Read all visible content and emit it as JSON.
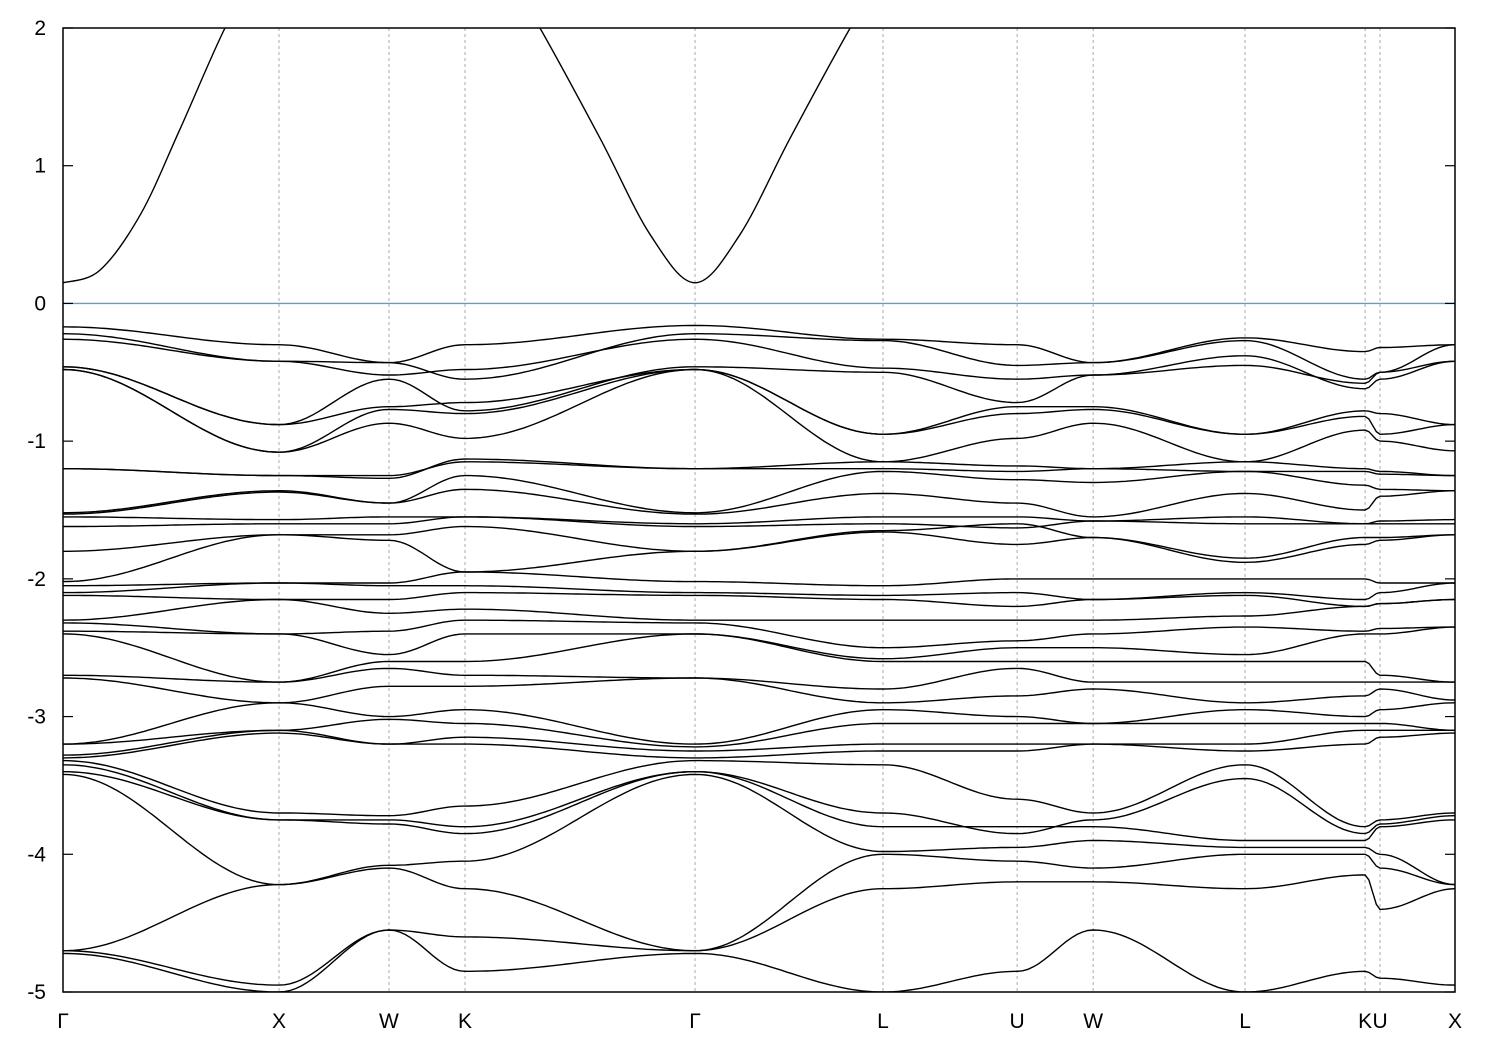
{
  "chart_data": {
    "type": "line",
    "title": "",
    "xlabel": "",
    "ylabel": "",
    "ylim": [
      -5,
      2
    ],
    "yticks": [
      "-5",
      "-4",
      "-3",
      "-2",
      "-1",
      "0",
      "1",
      "2"
    ],
    "grid": "vertical dashed lines at high-symmetry points",
    "fermi_level": 0,
    "colors": {
      "bands": "#000000",
      "fermi": "#4aa8d8",
      "grid": "#aaaaaa"
    },
    "kpoints": [
      {
        "label": "Γ",
        "k": 0
      },
      {
        "label": "X",
        "k": 1.0
      },
      {
        "label": "W",
        "k": 1.509
      },
      {
        "label": "K",
        "k": 1.861
      },
      {
        "label": "Γ",
        "k": 2.926
      },
      {
        "label": "L",
        "k": 3.796
      },
      {
        "label": "U",
        "k": 4.417
      },
      {
        "label": "W",
        "k": 4.769
      },
      {
        "label": "L",
        "k": 5.472
      },
      {
        "label": "K",
        "k": 6.028
      },
      {
        "label": "U",
        "k": 6.097
      },
      {
        "label": "X",
        "k": 6.444
      }
    ],
    "conduction_band": [
      [
        0,
        0.15
      ],
      [
        0.17,
        0.24
      ],
      [
        0.36,
        0.65
      ],
      [
        0.54,
        1.26
      ],
      [
        0.75,
        2.0
      ],
      [
        0.9,
        2.4
      ],
      [
        2.05,
        2.4
      ],
      [
        2.208,
        2.0
      ],
      [
        2.486,
        1.2
      ],
      [
        2.718,
        0.5
      ],
      [
        2.926,
        0.15
      ],
      [
        3.134,
        0.5
      ],
      [
        3.366,
        1.2
      ],
      [
        3.644,
        2.0
      ],
      [
        3.8,
        2.4
      ]
    ],
    "valence_bands": [
      [
        -0.17,
        -0.3,
        -0.43,
        -0.3,
        -0.16,
        -0.26,
        -0.3,
        -0.43,
        -0.25,
        -0.35,
        -0.32,
        -0.3
      ],
      [
        -0.22,
        -0.42,
        -0.43,
        -0.55,
        -0.22,
        -0.27,
        -0.45,
        -0.43,
        -0.27,
        -0.55,
        -0.5,
        -0.3
      ],
      [
        -0.26,
        -0.42,
        -0.52,
        -0.48,
        -0.26,
        -0.47,
        -0.55,
        -0.52,
        -0.38,
        -0.62,
        -0.55,
        -0.42
      ],
      [
        -0.46,
        -0.88,
        -0.55,
        -0.78,
        -0.46,
        -0.5,
        -0.72,
        -0.52,
        -0.45,
        -0.58,
        -0.5,
        -0.42
      ],
      [
        -0.46,
        -0.88,
        -0.75,
        -0.72,
        -0.48,
        -0.95,
        -0.75,
        -0.75,
        -0.95,
        -0.78,
        -0.8,
        -0.88
      ],
      [
        -0.48,
        -1.08,
        -0.77,
        -0.8,
        -0.48,
        -0.95,
        -0.8,
        -0.77,
        -0.95,
        -0.82,
        -0.95,
        -0.88
      ],
      [
        -0.48,
        -1.08,
        -0.87,
        -0.98,
        -0.48,
        -1.15,
        -0.98,
        -0.87,
        -1.15,
        -0.92,
        -1.0,
        -1.07
      ],
      [
        -1.2,
        -1.25,
        -1.25,
        -1.15,
        -1.2,
        -1.15,
        -1.18,
        -1.2,
        -1.15,
        -1.2,
        -1.22,
        -1.25
      ],
      [
        -1.2,
        -1.25,
        -1.27,
        -1.13,
        -1.2,
        -1.2,
        -1.22,
        -1.2,
        -1.22,
        -1.22,
        -1.24,
        -1.25
      ],
      [
        -1.52,
        -1.36,
        -1.45,
        -1.25,
        -1.52,
        -1.22,
        -1.28,
        -1.3,
        -1.22,
        -1.32,
        -1.35,
        -1.36
      ],
      [
        -1.53,
        -1.37,
        -1.45,
        -1.35,
        -1.53,
        -1.38,
        -1.45,
        -1.55,
        -1.38,
        -1.5,
        -1.4,
        -1.36
      ],
      [
        -1.55,
        -1.57,
        -1.55,
        -1.55,
        -1.6,
        -1.55,
        -1.55,
        -1.58,
        -1.55,
        -1.6,
        -1.58,
        -1.57
      ],
      [
        -1.62,
        -1.6,
        -1.6,
        -1.55,
        -1.62,
        -1.6,
        -1.63,
        -1.58,
        -1.6,
        -1.6,
        -1.6,
        -1.6
      ],
      [
        -1.8,
        -1.68,
        -1.68,
        -1.62,
        -1.8,
        -1.65,
        -1.6,
        -1.7,
        -1.85,
        -1.7,
        -1.7,
        -1.68
      ],
      [
        -2.02,
        -1.68,
        -1.72,
        -1.95,
        -1.8,
        -1.66,
        -1.75,
        -1.7,
        -1.88,
        -1.75,
        -1.72,
        -1.68
      ],
      [
        -2.05,
        -2.03,
        -2.03,
        -1.95,
        -2.02,
        -2.05,
        -2.0,
        -2.0,
        -2.0,
        -2.0,
        -2.03,
        -2.03
      ],
      [
        -2.1,
        -2.03,
        -2.05,
        -2.05,
        -2.1,
        -2.12,
        -2.1,
        -2.15,
        -2.1,
        -2.15,
        -2.1,
        -2.03
      ],
      [
        -2.12,
        -2.15,
        -2.15,
        -2.1,
        -2.12,
        -2.15,
        -2.2,
        -2.15,
        -2.12,
        -2.2,
        -2.18,
        -2.15
      ],
      [
        -2.3,
        -2.15,
        -2.25,
        -2.22,
        -2.3,
        -2.3,
        -2.3,
        -2.3,
        -2.27,
        -2.2,
        -2.18,
        -2.15
      ],
      [
        -2.32,
        -2.4,
        -2.38,
        -2.3,
        -2.32,
        -2.5,
        -2.45,
        -2.4,
        -2.35,
        -2.38,
        -2.36,
        -2.35
      ],
      [
        -2.38,
        -2.4,
        -2.55,
        -2.4,
        -2.4,
        -2.58,
        -2.5,
        -2.5,
        -2.55,
        -2.4,
        -2.4,
        -2.35
      ],
      [
        -2.4,
        -2.75,
        -2.6,
        -2.6,
        -2.4,
        -2.6,
        -2.6,
        -2.6,
        -2.6,
        -2.6,
        -2.7,
        -2.75
      ],
      [
        -2.7,
        -2.75,
        -2.65,
        -2.7,
        -2.72,
        -2.8,
        -2.65,
        -2.75,
        -2.75,
        -2.75,
        -2.75,
        -2.75
      ],
      [
        -2.72,
        -2.9,
        -2.78,
        -2.78,
        -2.72,
        -2.9,
        -2.85,
        -2.8,
        -2.9,
        -2.85,
        -2.8,
        -2.88
      ],
      [
        -3.2,
        -2.9,
        -3.0,
        -2.95,
        -3.2,
        -2.95,
        -3.0,
        -3.05,
        -2.95,
        -3.0,
        -2.95,
        -2.9
      ],
      [
        -3.2,
        -3.1,
        -3.02,
        -3.05,
        -3.22,
        -3.05,
        -3.05,
        -3.05,
        -3.05,
        -3.05,
        -3.05,
        -3.1
      ],
      [
        -3.28,
        -3.1,
        -3.2,
        -3.15,
        -3.25,
        -3.2,
        -3.2,
        -3.2,
        -3.2,
        -3.1,
        -3.1,
        -3.1
      ],
      [
        -3.3,
        -3.12,
        -3.2,
        -3.2,
        -3.3,
        -3.25,
        -3.25,
        -3.2,
        -3.25,
        -3.2,
        -3.15,
        -3.12
      ],
      [
        -3.32,
        -3.7,
        -3.72,
        -3.65,
        -3.32,
        -3.35,
        -3.6,
        -3.7,
        -3.35,
        -3.8,
        -3.75,
        -3.7
      ],
      [
        -3.35,
        -3.75,
        -3.75,
        -3.8,
        -3.4,
        -3.7,
        -3.85,
        -3.75,
        -3.45,
        -3.85,
        -3.78,
        -3.72
      ],
      [
        -3.4,
        -3.75,
        -3.78,
        -3.85,
        -3.4,
        -3.8,
        -3.8,
        -3.8,
        -3.9,
        -3.9,
        -3.8,
        -3.75
      ],
      [
        -3.42,
        -4.22,
        -4.08,
        -4.05,
        -3.42,
        -3.98,
        -3.95,
        -3.9,
        -3.95,
        -3.95,
        -4.0,
        -4.22
      ],
      [
        -4.7,
        -4.22,
        -4.1,
        -4.25,
        -4.7,
        -4.0,
        -4.05,
        -4.1,
        -4.0,
        -4.0,
        -4.1,
        -4.22
      ],
      [
        -4.7,
        -4.95,
        -4.55,
        -4.6,
        -4.7,
        -4.25,
        -4.2,
        -4.2,
        -4.25,
        -4.15,
        -4.4,
        -4.25
      ],
      [
        -4.72,
        -5.0,
        -4.55,
        -4.85,
        -4.72,
        -5.0,
        -4.85,
        -4.55,
        -5.0,
        -4.85,
        -4.9,
        -4.95
      ]
    ]
  }
}
